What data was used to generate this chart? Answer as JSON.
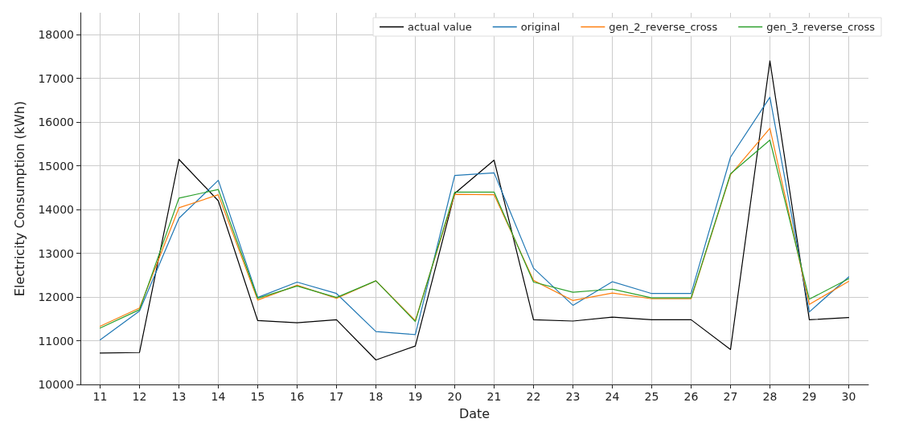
{
  "chart_data": {
    "type": "line",
    "xlabel": "Date",
    "ylabel": "Electricity Consumption (kWh)",
    "categories": [
      "11",
      "12",
      "13",
      "14",
      "15",
      "16",
      "17",
      "18",
      "19",
      "20",
      "21",
      "22",
      "23",
      "24",
      "25",
      "26",
      "27",
      "28",
      "29",
      "30"
    ],
    "series": [
      {
        "name": "actual value",
        "color": "#000000",
        "values": [
          10720,
          10730,
          15150,
          14200,
          11460,
          11410,
          11480,
          10560,
          10880,
          14370,
          15130,
          11480,
          11450,
          11540,
          11480,
          11480,
          10800,
          17400,
          11480,
          11530
        ]
      },
      {
        "name": "original",
        "color": "#1f77b4",
        "values": [
          11020,
          11680,
          13800,
          14670,
          11990,
          12340,
          12080,
          11210,
          11140,
          14780,
          14840,
          12660,
          11810,
          12350,
          12080,
          12080,
          15200,
          16570,
          11660,
          12460
        ]
      },
      {
        "name": "gen_2_reverse_cross",
        "color": "#ff7f0e",
        "values": [
          11330,
          11750,
          14040,
          14340,
          11930,
          12270,
          11970,
          12370,
          11460,
          14350,
          14340,
          12380,
          11920,
          12090,
          11960,
          11960,
          14800,
          15860,
          11830,
          12360
        ]
      },
      {
        "name": "gen_3_reverse_cross",
        "color": "#2ca02c",
        "values": [
          11290,
          11710,
          14260,
          14460,
          11970,
          12250,
          11990,
          12370,
          11440,
          14400,
          14400,
          12340,
          12110,
          12180,
          11980,
          11980,
          14820,
          15590,
          11950,
          12420
        ]
      }
    ],
    "ylim": [
      10000,
      18500
    ],
    "yticks": [
      10000,
      11000,
      12000,
      13000,
      14000,
      15000,
      16000,
      17000,
      18000
    ],
    "grid": true,
    "legend": "top right",
    "marker": "none",
    "line_style": "solid"
  }
}
